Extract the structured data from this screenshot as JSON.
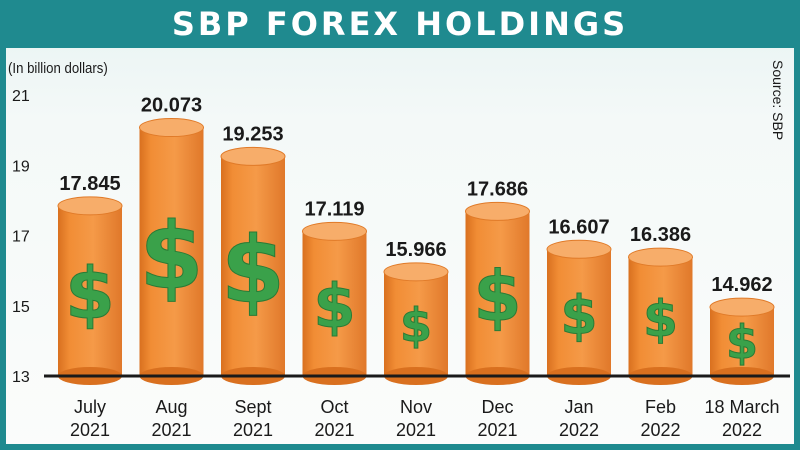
{
  "title": "SBP FOREX HOLDINGS",
  "unit_label": "(In billion dollars)",
  "source": "Source: SBP",
  "colors": {
    "header": "#1f8a8f",
    "bar_body": "#f08a30",
    "bar_top": "#f7ad6a",
    "dollar": "#3aa14a",
    "value_text": "#1a1a1a"
  },
  "chart_data": {
    "type": "bar",
    "title": "SBP FOREX HOLDINGS",
    "ylabel": "(In billion dollars)",
    "ylim": [
      13,
      21
    ],
    "yticks": [
      13,
      15,
      17,
      19,
      21
    ],
    "grid": false,
    "categories": [
      [
        "July",
        "2021"
      ],
      [
        "Aug",
        "2021"
      ],
      [
        "Sept",
        "2021"
      ],
      [
        "Oct",
        "2021"
      ],
      [
        "Nov",
        "2021"
      ],
      [
        "Dec",
        "2021"
      ],
      [
        "Jan",
        "2022"
      ],
      [
        "Feb",
        "2022"
      ],
      [
        "18 March",
        "2022"
      ]
    ],
    "values": [
      17.845,
      20.073,
      19.253,
      17.119,
      15.966,
      17.686,
      16.607,
      16.386,
      14.962
    ],
    "value_labels": [
      "17.845",
      "20.073",
      "19.253",
      "17.119",
      "15.966",
      "17.686",
      "16.607",
      "16.386",
      "14.962"
    ],
    "bar_icon": "dollar-sign"
  }
}
